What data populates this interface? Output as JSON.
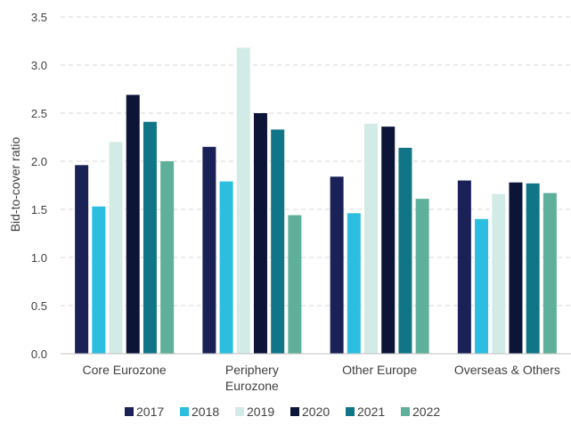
{
  "chart_data": {
    "type": "bar",
    "title": "",
    "xlabel": "",
    "ylabel": "Bid-to-cover  ratio",
    "ylim": [
      0,
      3.5
    ],
    "yticks": [
      "0.0",
      "0.5",
      "1.0",
      "1.5",
      "2.0",
      "2.5",
      "3.0",
      "3.5"
    ],
    "grid": true,
    "legend_position": "bottom",
    "categories": [
      [
        "Core Eurozone"
      ],
      [
        "Periphery",
        "Eurozone"
      ],
      [
        "Other Europe"
      ],
      [
        "Overseas & Others"
      ]
    ],
    "series": [
      {
        "name": "2017",
        "color": "#1a2157",
        "values": [
          1.96,
          2.15,
          1.84,
          1.8
        ]
      },
      {
        "name": "2018",
        "color": "#2bbee0",
        "values": [
          1.53,
          1.79,
          1.46,
          1.4
        ]
      },
      {
        "name": "2019",
        "color": "#d3ebe6",
        "values": [
          2.2,
          3.18,
          2.39,
          1.66
        ]
      },
      {
        "name": "2020",
        "color": "#0c1438",
        "values": [
          2.69,
          2.5,
          2.36,
          1.78
        ]
      },
      {
        "name": "2021",
        "color": "#107687",
        "values": [
          2.41,
          2.33,
          2.14,
          1.77
        ]
      },
      {
        "name": "2022",
        "color": "#5eb09a",
        "values": [
          2.0,
          1.44,
          1.61,
          1.67
        ]
      }
    ]
  }
}
